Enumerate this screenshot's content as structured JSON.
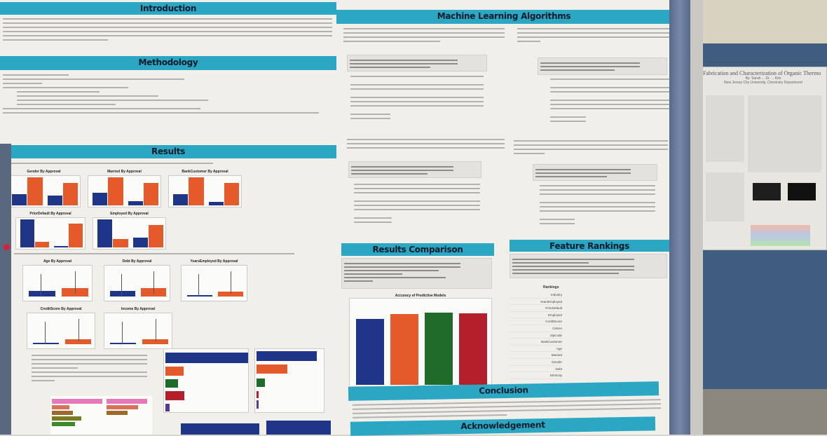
{
  "poster": {
    "sections": {
      "introduction": "Introduction",
      "methodology": "Methodology",
      "results": "Results",
      "ml_algorithms": "Machine Learning Algorithms",
      "results_comparison": "Results Comparison",
      "feature_rankings": "Feature Rankings",
      "conclusion": "Conclusion",
      "acknowledgement": "Acknowledgement"
    },
    "bar_charts": [
      {
        "title": "Gender By Approval",
        "values": [
          0.4,
          1.0,
          0.35,
          0.8
        ]
      },
      {
        "title": "Married By Approval",
        "values": [
          0.45,
          1.0,
          0.15,
          0.8
        ]
      },
      {
        "title": "BankCustomer By Approval",
        "values": [
          0.4,
          1.0,
          0.12,
          0.8
        ]
      },
      {
        "title": "PriorDefault By Approval",
        "values": [
          1.0,
          0.2,
          0.05,
          0.85
        ]
      },
      {
        "title": "Employed By Approval",
        "values": [
          1.0,
          0.3,
          0.35,
          0.8
        ]
      }
    ],
    "box_charts": [
      {
        "title": "Age By Approval"
      },
      {
        "title": "Debt By Approval"
      },
      {
        "title": "YearsEmployed By Approval"
      },
      {
        "title": "CreditScore By Approval"
      },
      {
        "title": "Income By Approval"
      }
    ],
    "accuracy_chart": {
      "title": "Accuracy of Predictive Models",
      "values": [
        0.78,
        0.84,
        0.86,
        0.85
      ],
      "colors": [
        "#1f3588",
        "#e45a2b",
        "#1e6b2a",
        "#b3202b"
      ]
    },
    "rankings": {
      "header": "Rankings",
      "features": [
        "Industry",
        "YearsEmployed",
        "PriorDefault",
        "Employed",
        "CreditScore",
        "Citizen",
        "ZipCode",
        "BankCustomer",
        "Age",
        "Married",
        "Gender",
        "Debt",
        "Ethnicity"
      ]
    }
  },
  "neighbor_poster": {
    "title": "Fabrication and Characterization of Organic Thermo",
    "authors": "By: Sarah ... Dr. ... Kim",
    "affiliation": "New Jersey City University, Chemistry Department"
  }
}
